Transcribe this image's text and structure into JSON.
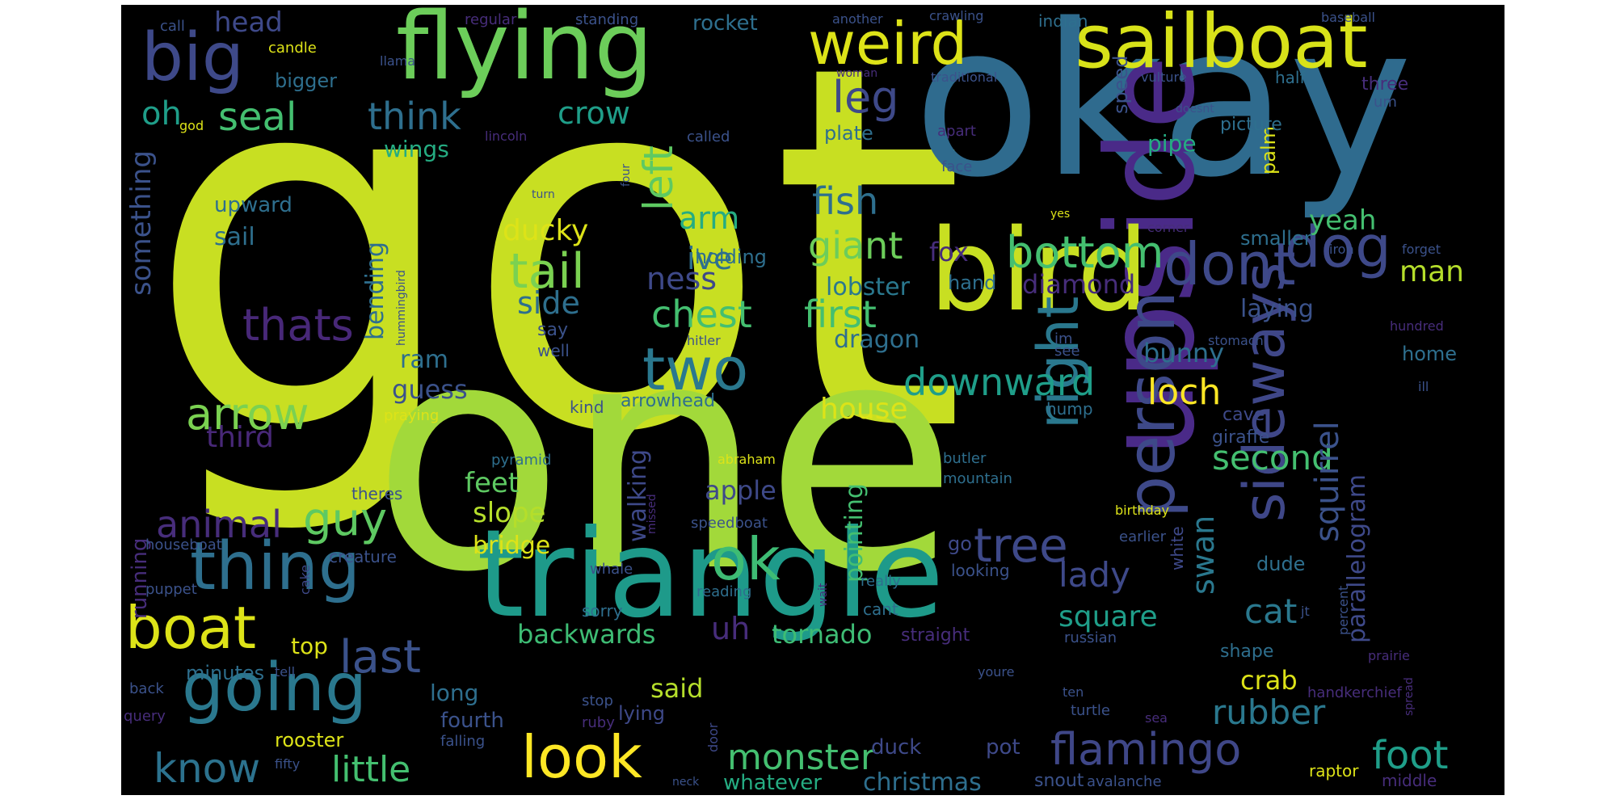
{
  "palette": {
    "lime": "#bddf26",
    "yellowgreen": "#9bd93c",
    "green": "#6ccd5a",
    "mint": "#44bf70",
    "aquagreen": "#25ac82",
    "teal": "#1f9e89",
    "steel": "#2e6f8e",
    "blue": "#3e4989",
    "indigo": "#472d7b",
    "purple": "#44015a",
    "yellow": "#fde725",
    "ochre": "#d8e219"
  },
  "words": [
    {
      "text": "got",
      "color": "#c8df22"
    },
    {
      "text": "one",
      "color": "#a2d93a"
    },
    {
      "text": "okay",
      "color": "#2f6b8e"
    },
    {
      "text": "triangle",
      "color": "#1e9a8a"
    },
    {
      "text": "upside",
      "color": "#4a2a88"
    },
    {
      "text": "bird",
      "color": "#c8df22"
    },
    {
      "text": "flying",
      "color": "#6ccd5a"
    },
    {
      "text": "sailboat",
      "color": "#d8e219"
    },
    {
      "text": "weird",
      "color": "#dde318"
    },
    {
      "text": "big",
      "color": "#3e4989"
    },
    {
      "text": "person",
      "color": "#3e4989"
    },
    {
      "text": "sideways",
      "color": "#3f4788"
    },
    {
      "text": "dog",
      "color": "#3e4989"
    },
    {
      "text": "right",
      "color": "#2a788e"
    },
    {
      "text": "dont",
      "color": "#3e4989"
    },
    {
      "text": "thing",
      "color": "#2e6f8e"
    },
    {
      "text": "going",
      "color": "#2a788e"
    },
    {
      "text": "boat",
      "color": "#dde318"
    },
    {
      "text": "two",
      "color": "#2a788e"
    },
    {
      "text": "look",
      "color": "#fde725"
    },
    {
      "text": "ok",
      "color": "#3ebc74"
    },
    {
      "text": "tree",
      "color": "#3e4989"
    },
    {
      "text": "bottom",
      "color": "#44bf70"
    },
    {
      "text": "flamingo",
      "color": "#3f4788"
    },
    {
      "text": "foot",
      "color": "#1f9e89"
    },
    {
      "text": "monster",
      "color": "#44bf70"
    },
    {
      "text": "know",
      "color": "#2c728e"
    },
    {
      "text": "little",
      "color": "#44bf70"
    },
    {
      "text": "last",
      "color": "#3b528b"
    },
    {
      "text": "guy",
      "color": "#5ec962"
    },
    {
      "text": "arrow",
      "color": "#7ad151"
    },
    {
      "text": "tail",
      "color": "#7ad151"
    },
    {
      "text": "seal",
      "color": "#44bf70"
    },
    {
      "text": "think",
      "color": "#2e6f8e"
    },
    {
      "text": "thats",
      "color": "#482878"
    },
    {
      "text": "animal",
      "color": "#472d7b"
    },
    {
      "text": "leg",
      "color": "#3e4989"
    },
    {
      "text": "left",
      "color": "#5ec962"
    },
    {
      "text": "fish",
      "color": "#2e6f8e"
    },
    {
      "text": "giant",
      "color": "#6ccd5a"
    },
    {
      "text": "chest",
      "color": "#44bf70"
    },
    {
      "text": "first",
      "color": "#44bf70"
    },
    {
      "text": "downward",
      "color": "#1f9e89"
    },
    {
      "text": "loch",
      "color": "#fde725"
    },
    {
      "text": "second",
      "color": "#44bf70"
    },
    {
      "text": "rubber",
      "color": "#2a788e"
    },
    {
      "text": "squirrel",
      "color": "#3b528b"
    },
    {
      "text": "parallelogram",
      "color": "#3e4989"
    },
    {
      "text": "cat",
      "color": "#2a788e"
    },
    {
      "text": "square",
      "color": "#1f9e89"
    },
    {
      "text": "lady",
      "color": "#3e4989"
    },
    {
      "text": "swan",
      "color": "#2a788e"
    },
    {
      "text": "crab",
      "color": "#dde318"
    },
    {
      "text": "yeah",
      "color": "#44bf70"
    },
    {
      "text": "man",
      "color": "#b5de2b"
    },
    {
      "text": "laying",
      "color": "#3b528b"
    },
    {
      "text": "oh",
      "color": "#1f9e89"
    },
    {
      "text": "head",
      "color": "#3e4989"
    },
    {
      "text": "crow",
      "color": "#1f9e89"
    },
    {
      "text": "arm",
      "color": "#25ac82"
    },
    {
      "text": "ive",
      "color": "#2e6f8e"
    },
    {
      "text": "ducky",
      "color": "#dde318"
    },
    {
      "text": "ness",
      "color": "#3e4989"
    },
    {
      "text": "side",
      "color": "#2e6f8e"
    },
    {
      "text": "fox",
      "color": "#472d7b"
    },
    {
      "text": "diamond",
      "color": "#472d7b"
    },
    {
      "text": "lobster",
      "color": "#2a788e"
    },
    {
      "text": "dragon",
      "color": "#2e6f8e"
    },
    {
      "text": "bunny",
      "color": "#2e6f8e"
    },
    {
      "text": "house",
      "color": "#dde318"
    },
    {
      "text": "guess",
      "color": "#3b528b"
    },
    {
      "text": "ram",
      "color": "#2e6f8e"
    },
    {
      "text": "third",
      "color": "#482878"
    },
    {
      "text": "bending",
      "color": "#2e6f8e"
    },
    {
      "text": "something",
      "color": "#3b528b"
    },
    {
      "text": "feet",
      "color": "#5ec962"
    },
    {
      "text": "slope",
      "color": "#b5de2b"
    },
    {
      "text": "bridge",
      "color": "#dde318"
    },
    {
      "text": "apple",
      "color": "#3e4989"
    },
    {
      "text": "walking",
      "color": "#3e4989"
    },
    {
      "text": "pointing",
      "color": "#44bf70"
    },
    {
      "text": "uh",
      "color": "#472d7b"
    },
    {
      "text": "tornado",
      "color": "#3ebc74"
    },
    {
      "text": "backwards",
      "color": "#3ebc74"
    },
    {
      "text": "christmas",
      "color": "#2e6f8e"
    },
    {
      "text": "whatever",
      "color": "#25ac82"
    },
    {
      "text": "duck",
      "color": "#3e4989"
    },
    {
      "text": "pot",
      "color": "#3e4989"
    },
    {
      "text": "top",
      "color": "#dde318"
    },
    {
      "text": "said",
      "color": "#b5de2b"
    },
    {
      "text": "long",
      "color": "#2e6f8e"
    },
    {
      "text": "fourth",
      "color": "#3b528b"
    },
    {
      "text": "rooster",
      "color": "#dde318"
    },
    {
      "text": "minutes",
      "color": "#2e6f8e"
    },
    {
      "text": "running",
      "color": "#472d7b"
    },
    {
      "text": "upward",
      "color": "#2e6f8e"
    },
    {
      "text": "sail",
      "color": "#2e6f8e"
    },
    {
      "text": "wings",
      "color": "#25ac82"
    },
    {
      "text": "bigger",
      "color": "#2e6f8e"
    },
    {
      "text": "rocket",
      "color": "#2e6f8e"
    },
    {
      "text": "speed",
      "color": "#3b528b"
    },
    {
      "text": "plate",
      "color": "#2e6f8e"
    },
    {
      "text": "pipe",
      "color": "#25ac82"
    },
    {
      "text": "palm",
      "color": "#dde318"
    },
    {
      "text": "smaller",
      "color": "#2e6f8e"
    },
    {
      "text": "hand",
      "color": "#2e6f8e"
    },
    {
      "text": "home",
      "color": "#2e6f8e"
    },
    {
      "text": "hump",
      "color": "#2e6f8e"
    },
    {
      "text": "cave",
      "color": "#3e4989"
    },
    {
      "text": "giraffe",
      "color": "#3b528b"
    },
    {
      "text": "holding",
      "color": "#2e6f8e"
    },
    {
      "text": "say",
      "color": "#3b528b"
    },
    {
      "text": "well",
      "color": "#3b528b"
    },
    {
      "text": "kind",
      "color": "#3b528b"
    },
    {
      "text": "arrowhead",
      "color": "#2e6f8e"
    },
    {
      "text": "praying",
      "color": "#dde318"
    },
    {
      "text": "pyramid",
      "color": "#2e6f8e"
    },
    {
      "text": "theres",
      "color": "#3b528b"
    },
    {
      "text": "houseboat",
      "color": "#3b528b"
    },
    {
      "text": "creature",
      "color": "#3b528b"
    },
    {
      "text": "puppet",
      "color": "#3b528b"
    },
    {
      "text": "cake",
      "color": "#3e4989"
    },
    {
      "text": "speedboat",
      "color": "#3b528b"
    },
    {
      "text": "missed",
      "color": "#472d7b"
    },
    {
      "text": "sorry",
      "color": "#2e6f8e"
    },
    {
      "text": "reading",
      "color": "#2e6f8e"
    },
    {
      "text": "really",
      "color": "#2e6f8e"
    },
    {
      "text": "cant",
      "color": "#2e6f8e"
    },
    {
      "text": "straight",
      "color": "#472d7b"
    },
    {
      "text": "looking",
      "color": "#3b528b"
    },
    {
      "text": "go",
      "color": "#3e4989"
    },
    {
      "text": "whale",
      "color": "#3b528b"
    },
    {
      "text": "wait",
      "color": "#472d7b"
    },
    {
      "text": "abraham",
      "color": "#dde318"
    },
    {
      "text": "butler",
      "color": "#2e6f8e"
    },
    {
      "text": "mountain",
      "color": "#2e6f8e"
    },
    {
      "text": "birthday",
      "color": "#dde318"
    },
    {
      "text": "earlier",
      "color": "#3b528b"
    },
    {
      "text": "white",
      "color": "#3e4989"
    },
    {
      "text": "dude",
      "color": "#2e6f8e"
    },
    {
      "text": "russian",
      "color": "#3b528b"
    },
    {
      "text": "shape",
      "color": "#2e6f8e"
    },
    {
      "text": "handkerchief",
      "color": "#472d7b"
    },
    {
      "text": "turtle",
      "color": "#3b528b"
    },
    {
      "text": "sea",
      "color": "#472d7b"
    },
    {
      "text": "ten",
      "color": "#3b528b"
    },
    {
      "text": "youre",
      "color": "#3b528b"
    },
    {
      "text": "stop",
      "color": "#3b528b"
    },
    {
      "text": "ruby",
      "color": "#472d7b"
    },
    {
      "text": "lying",
      "color": "#3e4989"
    },
    {
      "text": "door",
      "color": "#3e4989"
    },
    {
      "text": "falling",
      "color": "#3b528b"
    },
    {
      "text": "neck",
      "color": "#3b528b"
    },
    {
      "text": "fifty",
      "color": "#3b528b"
    },
    {
      "text": "back",
      "color": "#3b528b"
    },
    {
      "text": "query",
      "color": "#472d7b"
    },
    {
      "text": "tell",
      "color": "#3b528b"
    },
    {
      "text": "snout",
      "color": "#3b528b"
    },
    {
      "text": "avalanche",
      "color": "#3b528b"
    },
    {
      "text": "raptor",
      "color": "#dde318"
    },
    {
      "text": "middle",
      "color": "#472d7b"
    },
    {
      "text": "percent",
      "color": "#3b528b"
    },
    {
      "text": "spread",
      "color": "#472d7b"
    },
    {
      "text": "prairie",
      "color": "#472d7b"
    },
    {
      "text": "jt",
      "color": "#3b528b"
    },
    {
      "text": "ill",
      "color": "#3b528b"
    },
    {
      "text": "hundred",
      "color": "#472d7b"
    },
    {
      "text": "forget",
      "color": "#3b528b"
    },
    {
      "text": "iron",
      "color": "#3b528b"
    },
    {
      "text": "stomach",
      "color": "#3b528b"
    },
    {
      "text": "im",
      "color": "#3b528b"
    },
    {
      "text": "see",
      "color": "#3b528b"
    },
    {
      "text": "corner",
      "color": "#472d7b"
    },
    {
      "text": "yes",
      "color": "#dde318"
    },
    {
      "text": "hitler",
      "color": "#3b528b"
    },
    {
      "text": "hummingbird",
      "color": "#3b528b"
    },
    {
      "text": "turn",
      "color": "#3b528b"
    },
    {
      "text": "four",
      "color": "#3b528b"
    },
    {
      "text": "face",
      "color": "#3b528b"
    },
    {
      "text": "apart",
      "color": "#472d7b"
    },
    {
      "text": "picture",
      "color": "#2e6f8e"
    },
    {
      "text": "doesnt",
      "color": "#3b528b"
    },
    {
      "text": "called",
      "color": "#3b528b"
    },
    {
      "text": "lincoln",
      "color": "#472d7b"
    },
    {
      "text": "god",
      "color": "#dde318"
    },
    {
      "text": "candle",
      "color": "#dde318"
    },
    {
      "text": "llama",
      "color": "#3b528b"
    },
    {
      "text": "call",
      "color": "#3b528b"
    },
    {
      "text": "regular",
      "color": "#472d7b"
    },
    {
      "text": "standing",
      "color": "#3b528b"
    },
    {
      "text": "another",
      "color": "#3b528b"
    },
    {
      "text": "crawling",
      "color": "#3b528b"
    },
    {
      "text": "indian",
      "color": "#2e6f8e"
    },
    {
      "text": "baseball",
      "color": "#3b528b"
    },
    {
      "text": "woman",
      "color": "#472d7b"
    },
    {
      "text": "traditional",
      "color": "#3b528b"
    },
    {
      "text": "vulture",
      "color": "#3b528b"
    },
    {
      "text": "half",
      "color": "#2e6f8e"
    },
    {
      "text": "three",
      "color": "#472d7b"
    },
    {
      "text": "um",
      "color": "#3b528b"
    }
  ]
}
